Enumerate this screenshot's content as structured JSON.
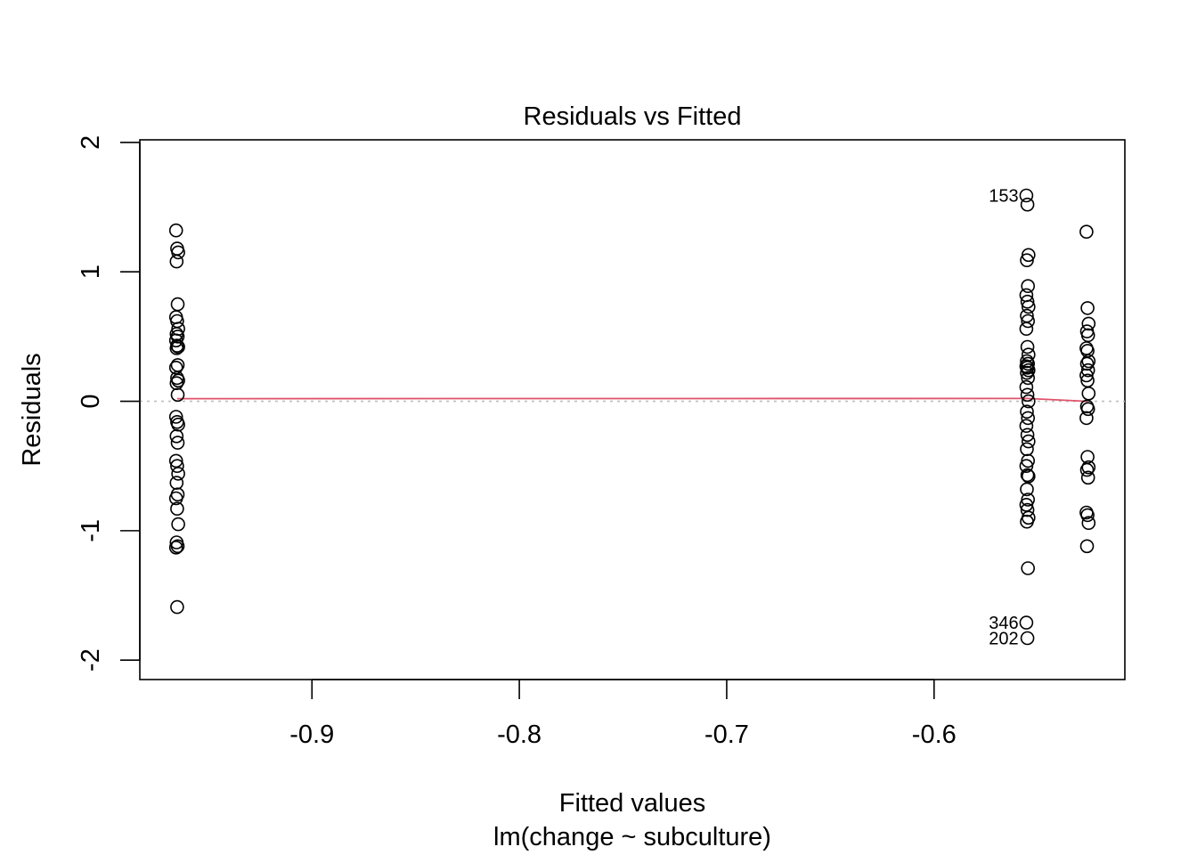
{
  "chart_data": {
    "type": "scatter",
    "title": "Residuals vs Fitted",
    "xlabel": "Fitted values",
    "sublabel": "lm(change ~ subculture)",
    "ylabel": "Residuals",
    "xlim": [
      -0.983,
      -0.508
    ],
    "ylim": [
      -2.15,
      2.02
    ],
    "x_ticks": [
      -0.9,
      -0.8,
      -0.7,
      -0.6
    ],
    "x_tick_labels": [
      "-0.9",
      "-0.8",
      "-0.7",
      "-0.6"
    ],
    "y_ticks": [
      -2,
      -1,
      0,
      1,
      2
    ],
    "y_tick_labels": [
      "-2",
      "-1",
      "0",
      "1",
      "2"
    ],
    "groups": [
      {
        "x": -0.965,
        "residuals": [
          1.32,
          1.18,
          1.15,
          1.08,
          0.75,
          0.65,
          0.62,
          0.56,
          0.52,
          0.5,
          0.47,
          0.43,
          0.42,
          0.41,
          0.28,
          0.26,
          0.18,
          0.16,
          0.14,
          0.05,
          -0.12,
          -0.16,
          -0.18,
          -0.27,
          -0.32,
          -0.46,
          -0.5,
          -0.56,
          -0.63,
          -0.72,
          -0.75,
          -0.83,
          -0.95,
          -1.09,
          -1.12,
          -1.13,
          -1.59
        ]
      },
      {
        "x": -0.555,
        "residuals": [
          1.59,
          1.52,
          1.13,
          1.09,
          0.89,
          0.82,
          0.77,
          0.73,
          0.66,
          0.62,
          0.56,
          0.42,
          0.36,
          0.31,
          0.29,
          0.27,
          0.26,
          0.24,
          0.22,
          0.18,
          0.11,
          0.05,
          0.0,
          -0.08,
          -0.13,
          -0.19,
          -0.26,
          -0.31,
          -0.37,
          -0.46,
          -0.5,
          -0.57,
          -0.58,
          -0.68,
          -0.76,
          -0.8,
          -0.84,
          -0.9,
          -0.93,
          -1.29,
          -1.71,
          -1.83
        ]
      },
      {
        "x": -0.526,
        "residuals": [
          1.31,
          0.72,
          0.6,
          0.54,
          0.51,
          0.41,
          0.39,
          0.31,
          0.29,
          0.24,
          0.2,
          0.16,
          0.06,
          -0.04,
          -0.06,
          -0.13,
          -0.43,
          -0.51,
          -0.53,
          -0.59,
          -0.86,
          -0.88,
          -0.94,
          -1.12
        ]
      }
    ],
    "smoother": {
      "x": [
        -0.965,
        -0.555,
        -0.526
      ],
      "y": [
        0.02,
        0.022,
        0.0
      ],
      "color": "#DF536B"
    },
    "reference_line": {
      "y": 0,
      "style": "dotted",
      "color": "#BEBEBE"
    },
    "labeled_points": [
      {
        "label": "153",
        "x": -0.555,
        "y": 1.59
      },
      {
        "label": "346",
        "x": -0.555,
        "y": -1.71
      },
      {
        "label": "202",
        "x": -0.555,
        "y": -1.83
      }
    ],
    "grid": false
  }
}
